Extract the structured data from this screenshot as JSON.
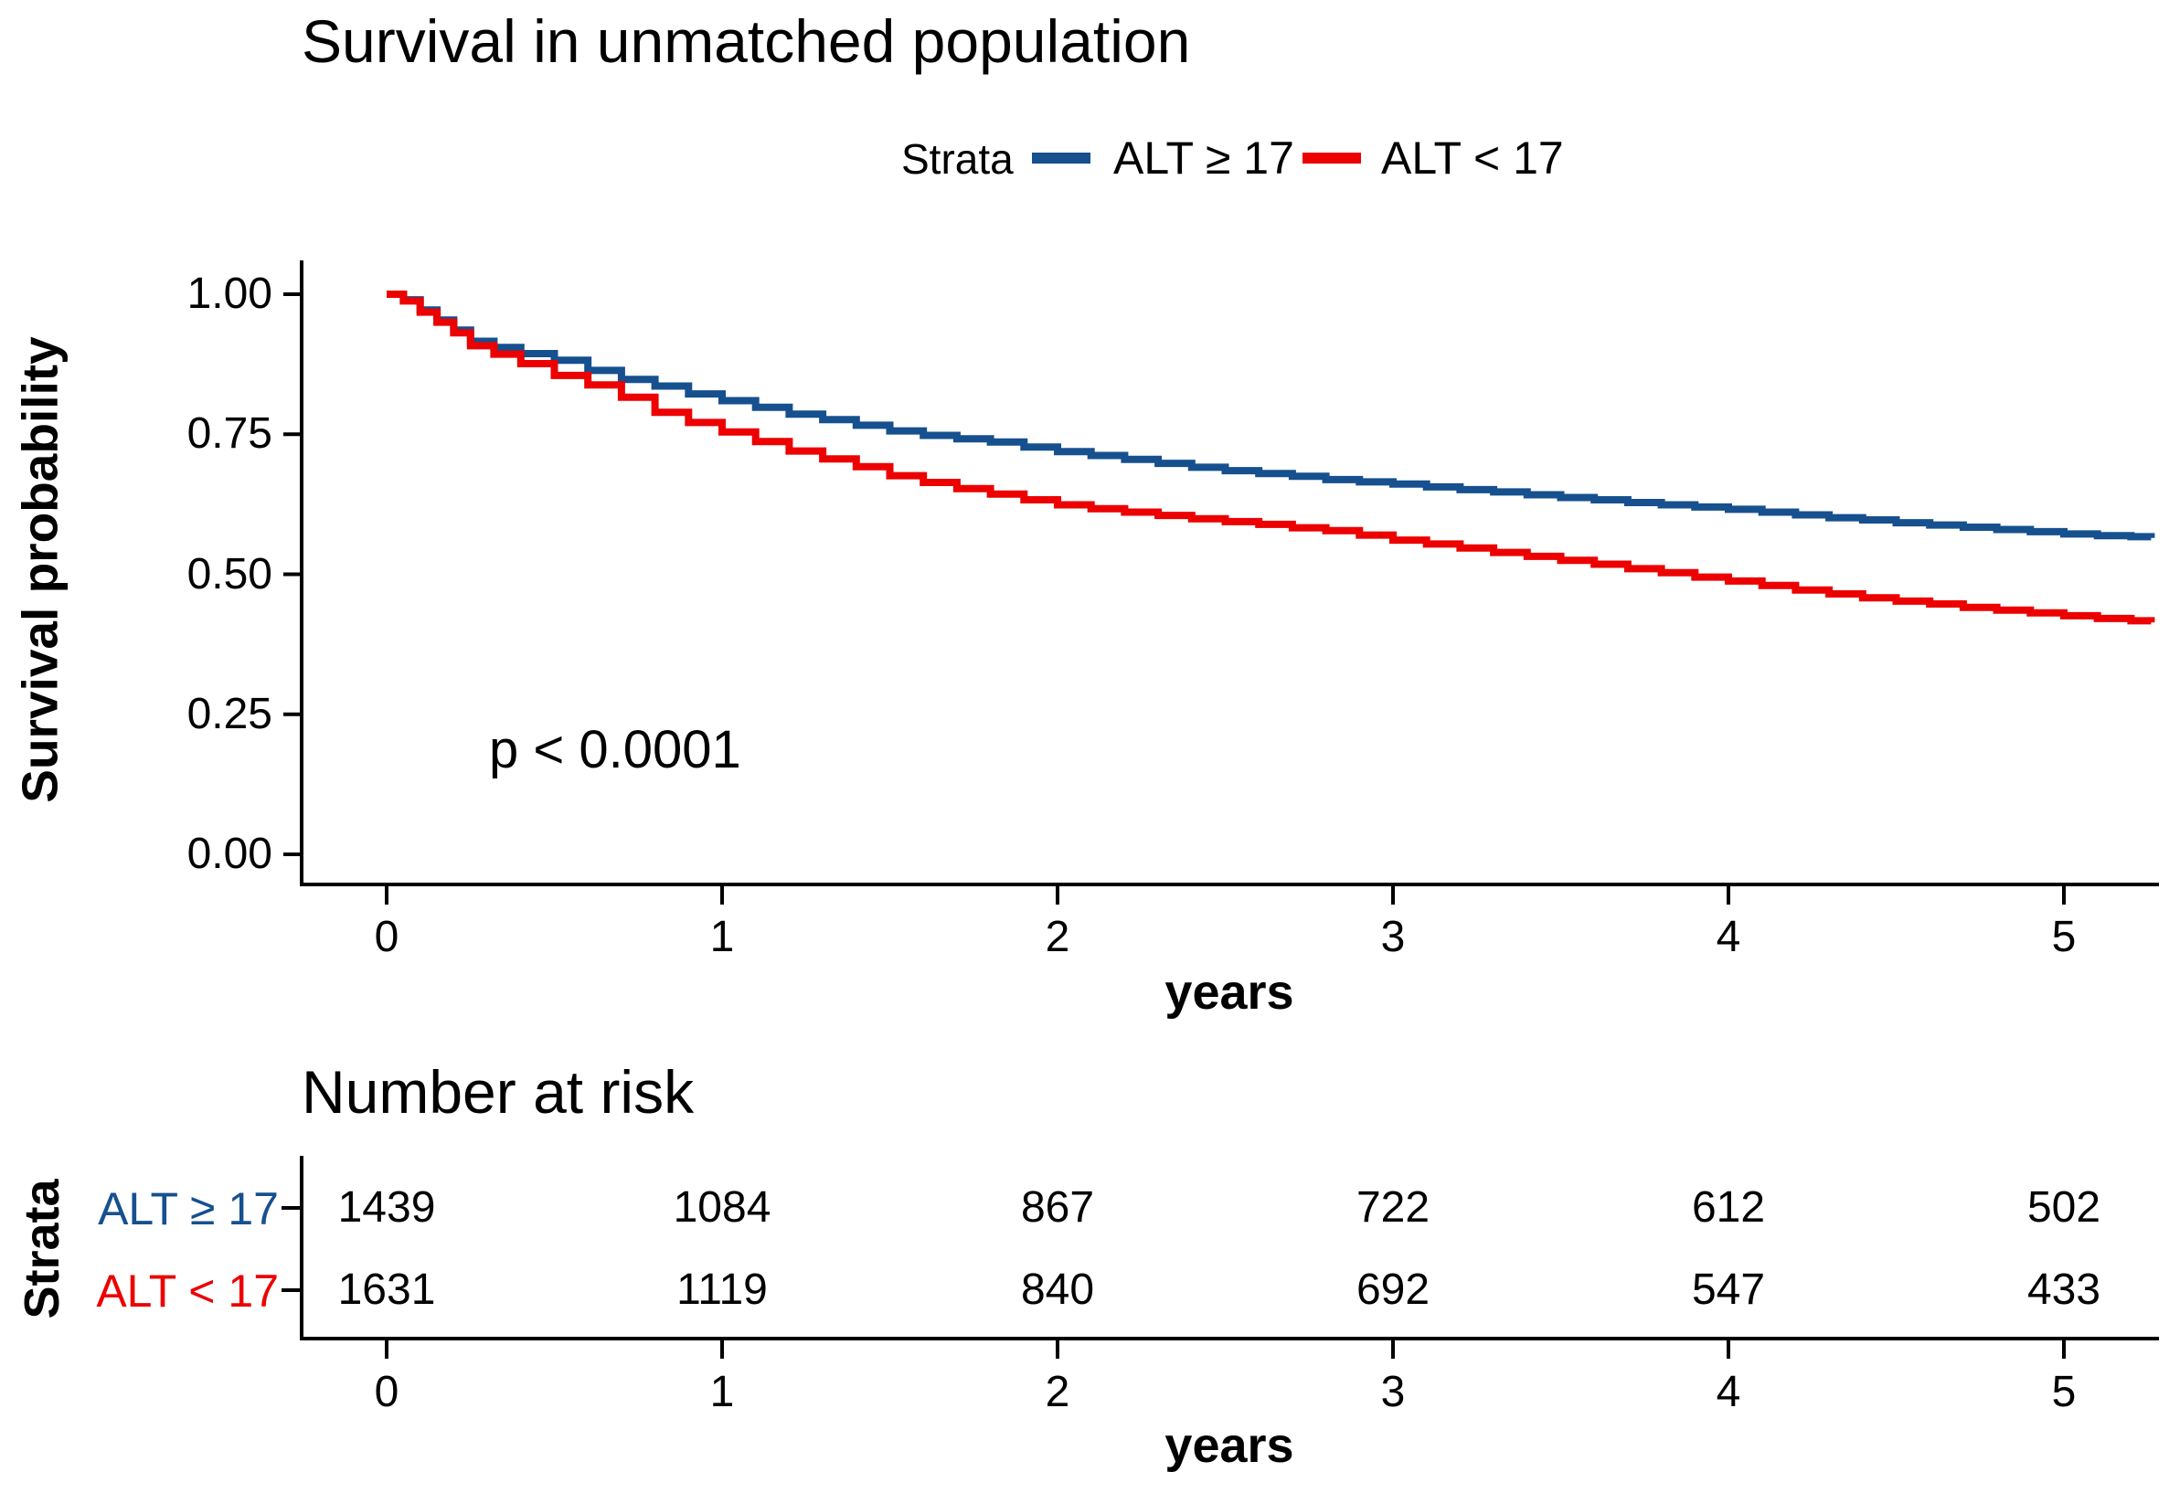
{
  "title": "Survival in unmatched population",
  "legend": {
    "title": "Strata",
    "items": [
      {
        "label": "ALT ≥ 17",
        "color": "#16508E"
      },
      {
        "label": "ALT < 17",
        "color": "#EC0000"
      }
    ]
  },
  "annotation": {
    "p_value": "p < 0.0001"
  },
  "axes": {
    "y_label": "Survival probability",
    "x_label": "years",
    "y_tick_labels": [
      "1.00",
      "0.75",
      "0.50",
      "0.25",
      "0.00"
    ],
    "x_tick_labels": [
      "0",
      "1",
      "2",
      "3",
      "4",
      "5"
    ]
  },
  "risk_table": {
    "title": "Number at risk",
    "axis_label": "Strata",
    "x_label": "years",
    "x_tick_labels": [
      "0",
      "1",
      "2",
      "3",
      "4",
      "5"
    ],
    "rows": [
      {
        "label": "ALT ≥ 17",
        "color": "#16508E",
        "values": [
          "1439",
          "1084",
          "867",
          "722",
          "612",
          "502"
        ]
      },
      {
        "label": "ALT < 17",
        "color": "#EC0000",
        "values": [
          "1631",
          "1119",
          "840",
          "692",
          "547",
          "433"
        ]
      }
    ]
  },
  "chart_data": {
    "type": "line",
    "subtype": "kaplan-meier-step",
    "title": "Survival in unmatched population",
    "xlabel": "years",
    "ylabel": "Survival probability",
    "xlim": [
      0,
      5.3
    ],
    "ylim": [
      0,
      1
    ],
    "x_ticks": [
      0,
      1,
      2,
      3,
      4,
      5
    ],
    "y_ticks": [
      1.0,
      0.75,
      0.5,
      0.25,
      0.0
    ],
    "grid": false,
    "legend_position": "top",
    "p_value": "p < 0.0001",
    "series": [
      {
        "name": "ALT ≥ 17",
        "color": "#16508E",
        "points": [
          [
            0,
            1.0
          ],
          [
            0.05,
            0.99
          ],
          [
            0.1,
            0.972
          ],
          [
            0.15,
            0.954
          ],
          [
            0.2,
            0.936
          ],
          [
            0.25,
            0.916
          ],
          [
            0.32,
            0.905
          ],
          [
            0.4,
            0.894
          ],
          [
            0.5,
            0.882
          ],
          [
            0.6,
            0.864
          ],
          [
            0.7,
            0.848
          ],
          [
            0.8,
            0.836
          ],
          [
            0.9,
            0.822
          ],
          [
            1.0,
            0.81
          ],
          [
            1.1,
            0.798
          ],
          [
            1.2,
            0.786
          ],
          [
            1.3,
            0.776
          ],
          [
            1.4,
            0.766
          ],
          [
            1.5,
            0.756
          ],
          [
            1.6,
            0.748
          ],
          [
            1.7,
            0.742
          ],
          [
            1.8,
            0.736
          ],
          [
            1.9,
            0.727
          ],
          [
            2.0,
            0.719
          ],
          [
            2.1,
            0.712
          ],
          [
            2.2,
            0.705
          ],
          [
            2.3,
            0.698
          ],
          [
            2.4,
            0.691
          ],
          [
            2.5,
            0.685
          ],
          [
            2.6,
            0.68
          ],
          [
            2.7,
            0.675
          ],
          [
            2.8,
            0.669
          ],
          [
            2.9,
            0.665
          ],
          [
            3.0,
            0.661
          ],
          [
            3.1,
            0.656
          ],
          [
            3.2,
            0.651
          ],
          [
            3.3,
            0.647
          ],
          [
            3.4,
            0.642
          ],
          [
            3.5,
            0.637
          ],
          [
            3.6,
            0.633
          ],
          [
            3.7,
            0.628
          ],
          [
            3.8,
            0.624
          ],
          [
            3.9,
            0.62
          ],
          [
            4.0,
            0.616
          ],
          [
            4.1,
            0.611
          ],
          [
            4.2,
            0.606
          ],
          [
            4.3,
            0.601
          ],
          [
            4.4,
            0.597
          ],
          [
            4.5,
            0.592
          ],
          [
            4.6,
            0.588
          ],
          [
            4.7,
            0.584
          ],
          [
            4.8,
            0.58
          ],
          [
            4.9,
            0.576
          ],
          [
            5.0,
            0.572
          ],
          [
            5.1,
            0.569
          ],
          [
            5.2,
            0.567
          ],
          [
            5.26,
            0.565
          ]
        ]
      },
      {
        "name": "ALT < 17",
        "color": "#EC0000",
        "points": [
          [
            0,
            1.0
          ],
          [
            0.05,
            0.988
          ],
          [
            0.1,
            0.968
          ],
          [
            0.15,
            0.95
          ],
          [
            0.2,
            0.931
          ],
          [
            0.25,
            0.908
          ],
          [
            0.32,
            0.893
          ],
          [
            0.4,
            0.876
          ],
          [
            0.5,
            0.855
          ],
          [
            0.6,
            0.838
          ],
          [
            0.7,
            0.816
          ],
          [
            0.8,
            0.789
          ],
          [
            0.9,
            0.771
          ],
          [
            1.0,
            0.754
          ],
          [
            1.1,
            0.737
          ],
          [
            1.2,
            0.72
          ],
          [
            1.3,
            0.706
          ],
          [
            1.4,
            0.692
          ],
          [
            1.5,
            0.676
          ],
          [
            1.6,
            0.664
          ],
          [
            1.7,
            0.653
          ],
          [
            1.8,
            0.643
          ],
          [
            1.9,
            0.633
          ],
          [
            2.0,
            0.624
          ],
          [
            2.1,
            0.617
          ],
          [
            2.2,
            0.611
          ],
          [
            2.3,
            0.605
          ],
          [
            2.4,
            0.599
          ],
          [
            2.5,
            0.594
          ],
          [
            2.6,
            0.589
          ],
          [
            2.7,
            0.583
          ],
          [
            2.8,
            0.578
          ],
          [
            2.9,
            0.57
          ],
          [
            3.0,
            0.561
          ],
          [
            3.1,
            0.554
          ],
          [
            3.2,
            0.547
          ],
          [
            3.3,
            0.539
          ],
          [
            3.4,
            0.532
          ],
          [
            3.5,
            0.525
          ],
          [
            3.6,
            0.518
          ],
          [
            3.7,
            0.51
          ],
          [
            3.8,
            0.503
          ],
          [
            3.9,
            0.495
          ],
          [
            4.0,
            0.488
          ],
          [
            4.1,
            0.48
          ],
          [
            4.2,
            0.472
          ],
          [
            4.3,
            0.465
          ],
          [
            4.4,
            0.458
          ],
          [
            4.5,
            0.452
          ],
          [
            4.6,
            0.447
          ],
          [
            4.7,
            0.441
          ],
          [
            4.8,
            0.436
          ],
          [
            4.9,
            0.431
          ],
          [
            5.0,
            0.426
          ],
          [
            5.1,
            0.421
          ],
          [
            5.2,
            0.417
          ],
          [
            5.26,
            0.414
          ]
        ]
      }
    ],
    "number_at_risk": {
      "times": [
        0,
        1,
        2,
        3,
        4,
        5
      ],
      "groups": [
        {
          "name": "ALT ≥ 17",
          "counts": [
            1439,
            1084,
            867,
            722,
            612,
            502
          ]
        },
        {
          "name": "ALT < 17",
          "counts": [
            1631,
            1119,
            840,
            692,
            547,
            433
          ]
        }
      ]
    }
  }
}
